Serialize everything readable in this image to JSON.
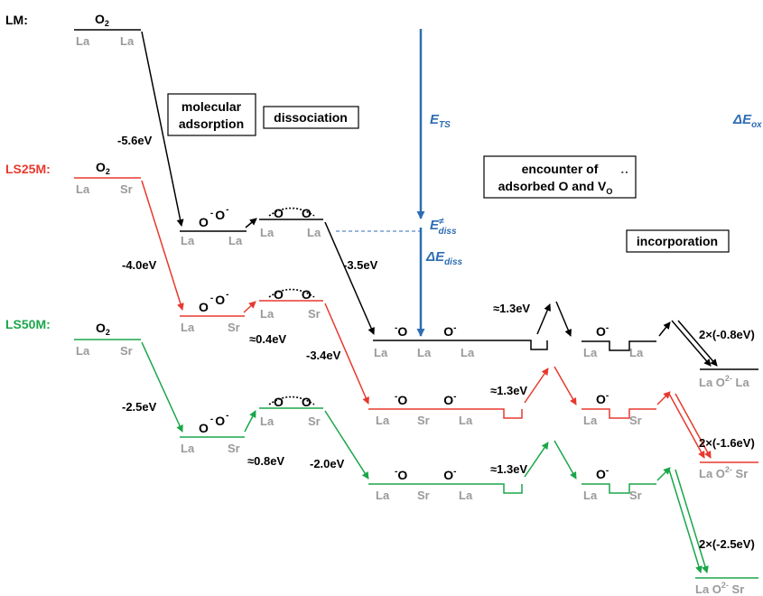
{
  "colors": {
    "LM": "#000000",
    "LS25M": "#e8392e",
    "LS50M": "#1aa64a",
    "site": "#9a9a9a",
    "annotation": "#2e6db4"
  },
  "series": {
    "LM": {
      "label": "LM:",
      "o2": "O",
      "o2_sub": "2",
      "o2_sites": [
        "La",
        "La"
      ],
      "ads_energy": "-5.6eV",
      "ads_sites": [
        "La",
        "La"
      ],
      "diss_sites": [
        "La",
        "La"
      ],
      "enc_energy": "-3.5eV",
      "enc_sites": [
        "La",
        "La",
        "La"
      ],
      "barrier": "≈1.3eV",
      "inc_sites": [
        "La",
        "La"
      ],
      "final_energy": "2×(-0.8eV)",
      "final_label": "La O",
      "final_sup": "2-",
      "final_label_end": " La"
    },
    "LS25M": {
      "label": "LS25M:",
      "o2": "O",
      "o2_sub": "2",
      "o2_sites": [
        "La",
        "Sr"
      ],
      "ads_energy": "-4.0eV",
      "ads_sites": [
        "La",
        "Sr"
      ],
      "diss_barrier": "≈0.4eV",
      "diss_sites": [
        "La",
        "Sr"
      ],
      "enc_energy": "-3.4eV",
      "enc_sites": [
        "La",
        "Sr",
        "La"
      ],
      "barrier": "≈1.3eV",
      "inc_sites": [
        "La",
        "Sr"
      ],
      "final_energy": "2×(-1.6eV)",
      "final_label": "La O",
      "final_sup": "2-",
      "final_label_end": " Sr"
    },
    "LS50M": {
      "label": "LS50M:",
      "o2": "O",
      "o2_sub": "2",
      "o2_sites": [
        "La",
        "Sr"
      ],
      "ads_energy": "-2.5eV",
      "ads_sites": [
        "La",
        "Sr"
      ],
      "diss_barrier": "≈0.8eV",
      "diss_sites": [
        "La",
        "Sr"
      ],
      "enc_energy": "-2.0eV",
      "enc_sites": [
        "La",
        "Sr",
        "La"
      ],
      "barrier": "≈1.3eV",
      "inc_sites": [
        "La",
        "Sr"
      ],
      "final_energy": "2×(-2.5eV)",
      "final_label": "La O",
      "final_sup": "2-",
      "final_label_end": " Sr"
    }
  },
  "boxes": {
    "molecular_1": "molecular",
    "molecular_2": "adsorption",
    "dissociation": "dissociation",
    "encounter_1": "encounter of",
    "encounter_2": "adsorbed O and V",
    "encounter_sub": "O",
    "incorporation": "incorporation"
  },
  "annotations": {
    "ets_main": "E",
    "ets_sub": "TS",
    "ediss_main": "E",
    "ediss_sup": "≠",
    "ediss_sub": "diss",
    "dediss_main": "ΔE",
    "dediss_sub": "diss",
    "deox_main": "ΔE",
    "deox_sub": "ox"
  },
  "species": {
    "oxygen": "O",
    "minus": "-"
  }
}
